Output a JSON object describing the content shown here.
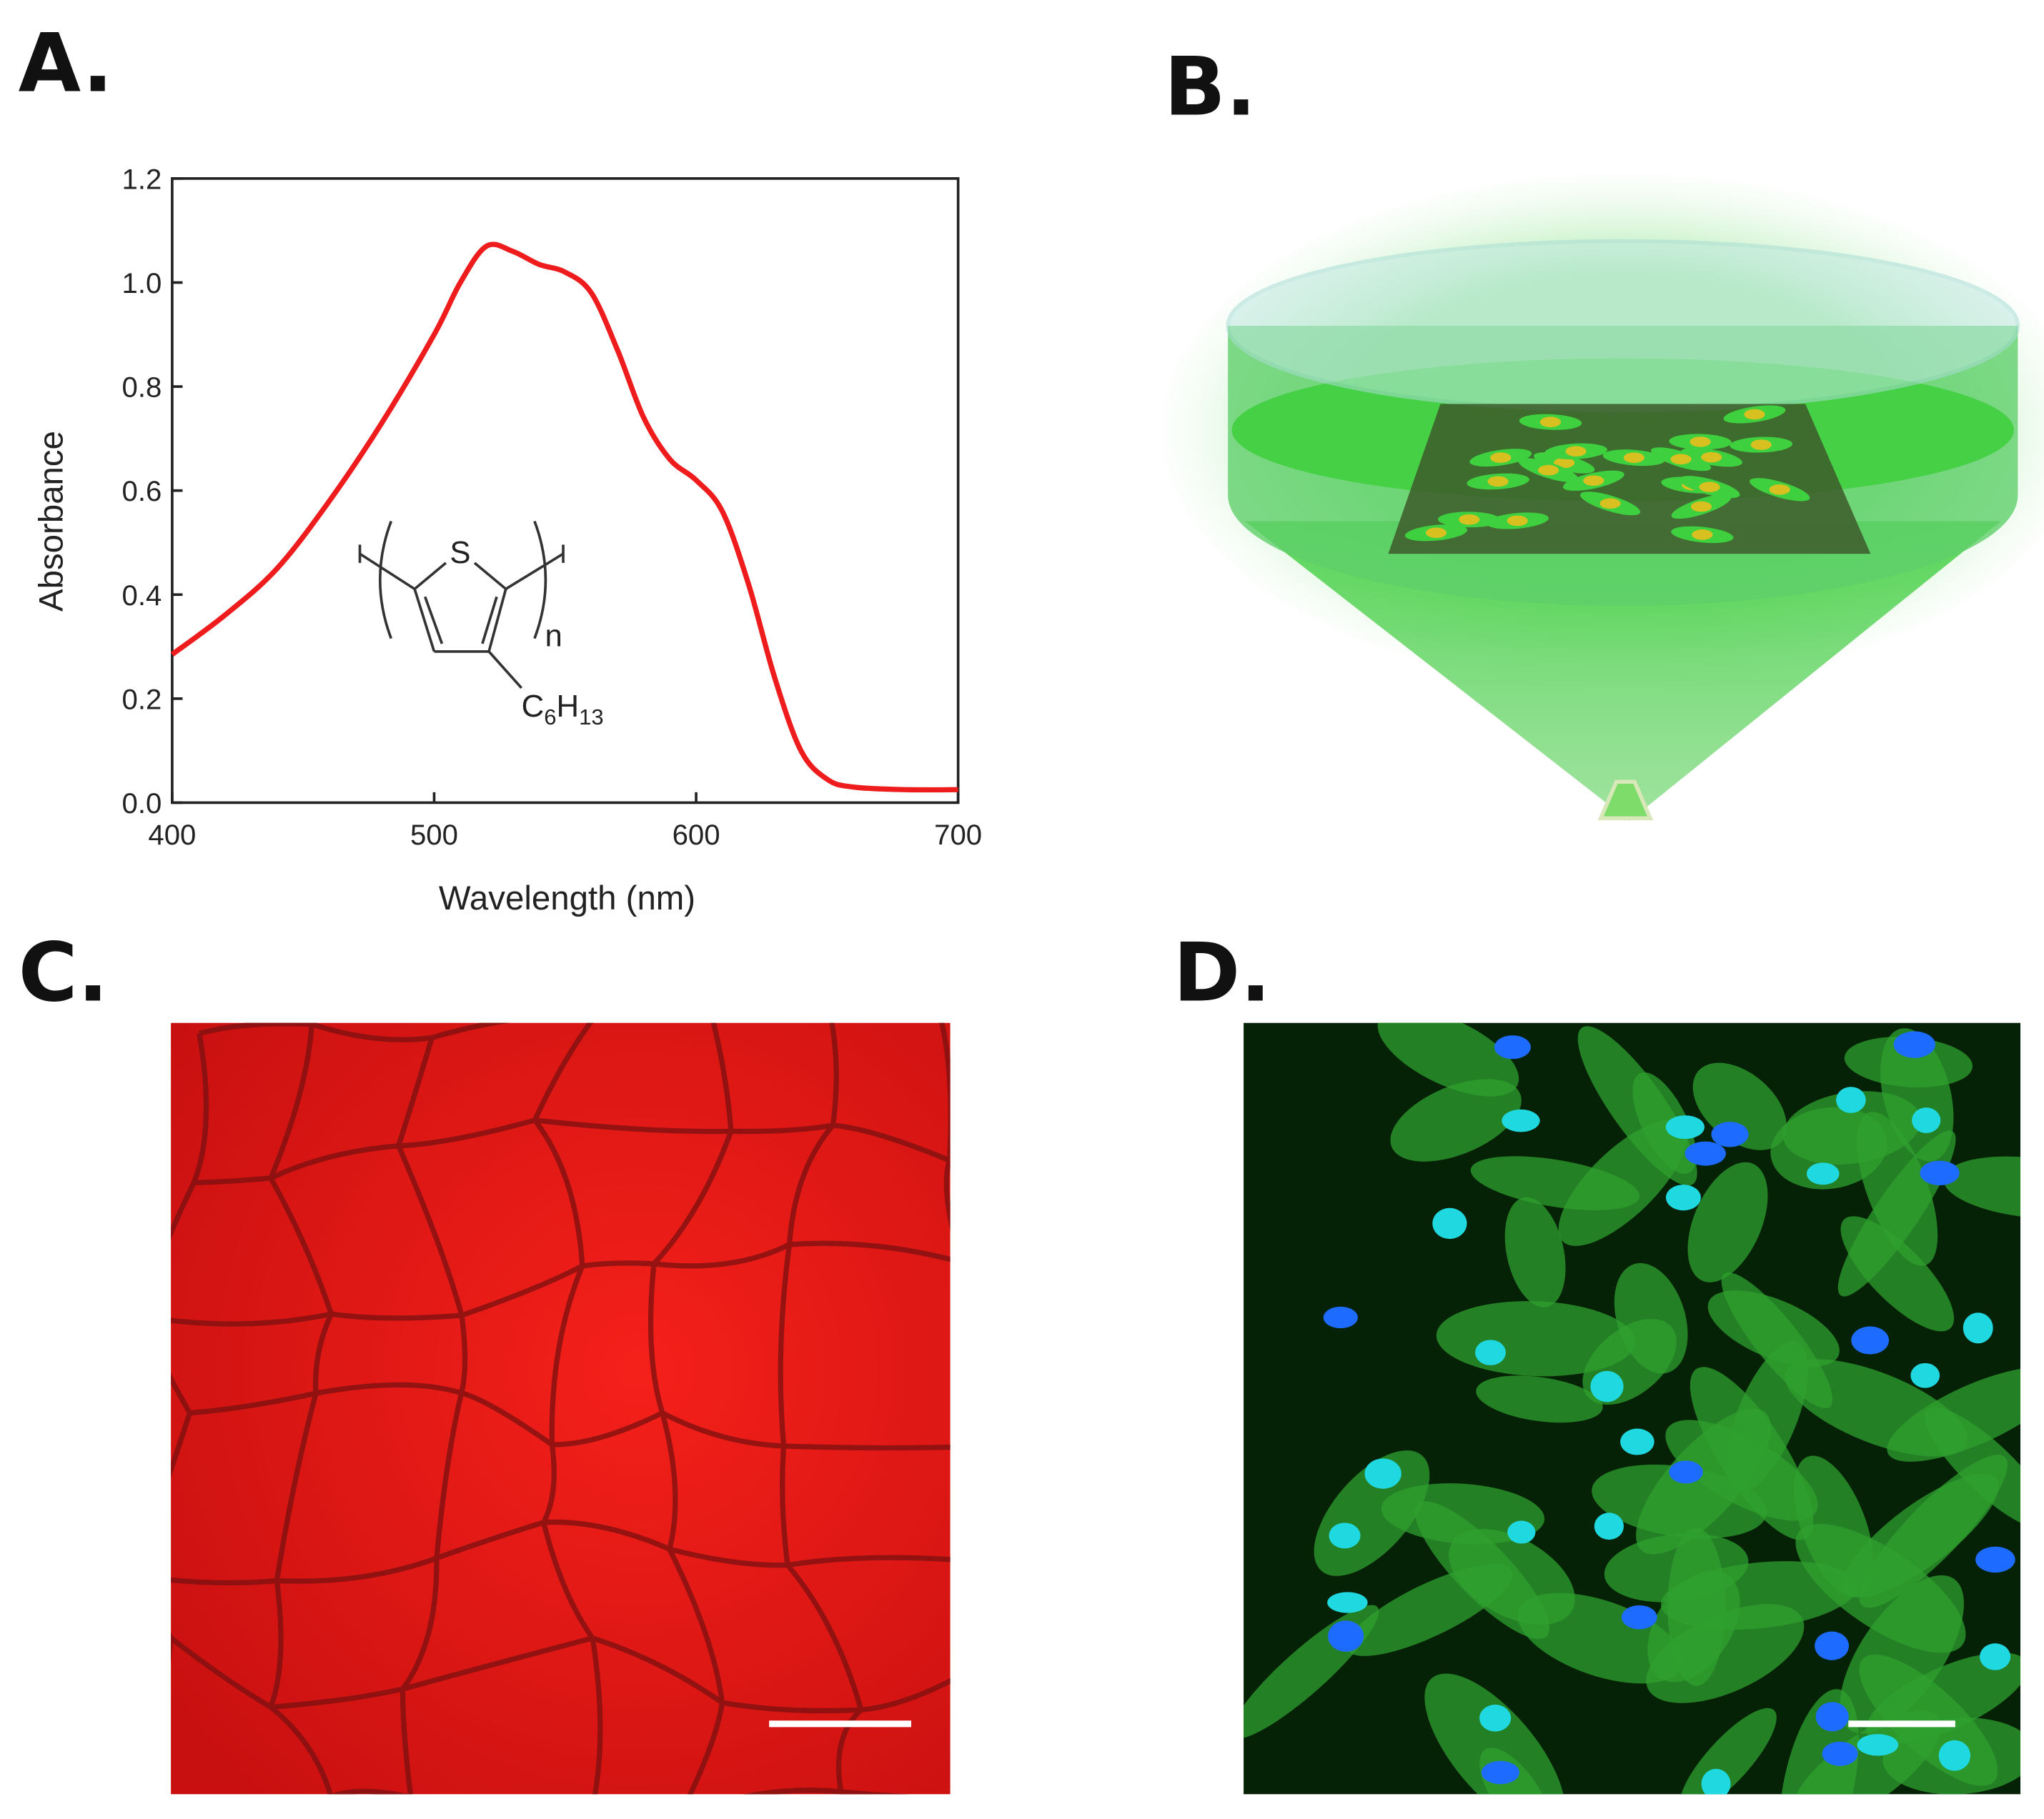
{
  "panel_labels": [
    "A.",
    "B.",
    "C.",
    "D."
  ],
  "chart_data": {
    "type": "line",
    "xlabel": "Wavelength (nm)",
    "ylabel": "Absorbance",
    "x": [
      400,
      420,
      440,
      460,
      480,
      500,
      510,
      520,
      530,
      540,
      550,
      560,
      570,
      580,
      590,
      600,
      610,
      620,
      630,
      640,
      650,
      660,
      680,
      700
    ],
    "values": [
      0.285,
      0.36,
      0.45,
      0.58,
      0.73,
      0.9,
      1.0,
      1.07,
      1.06,
      1.035,
      1.02,
      0.98,
      0.87,
      0.74,
      0.66,
      0.62,
      0.56,
      0.42,
      0.24,
      0.1,
      0.045,
      0.03,
      0.025,
      0.025
    ],
    "color": "#ee1c1c",
    "xlim": [
      400,
      700
    ],
    "ylim": [
      0,
      1.2
    ],
    "xticks": [
      400,
      500,
      600,
      700
    ],
    "yticks": [
      {
        "value": 0,
        "label": "0.0"
      },
      0.2,
      0.4,
      0.6,
      0.8,
      {
        "value": 1,
        "label": "1.0"
      },
      1.2
    ]
  },
  "inset": {
    "atom": "S",
    "repeat": "n",
    "substituent": [
      "C",
      "6",
      "H",
      "13"
    ]
  }
}
